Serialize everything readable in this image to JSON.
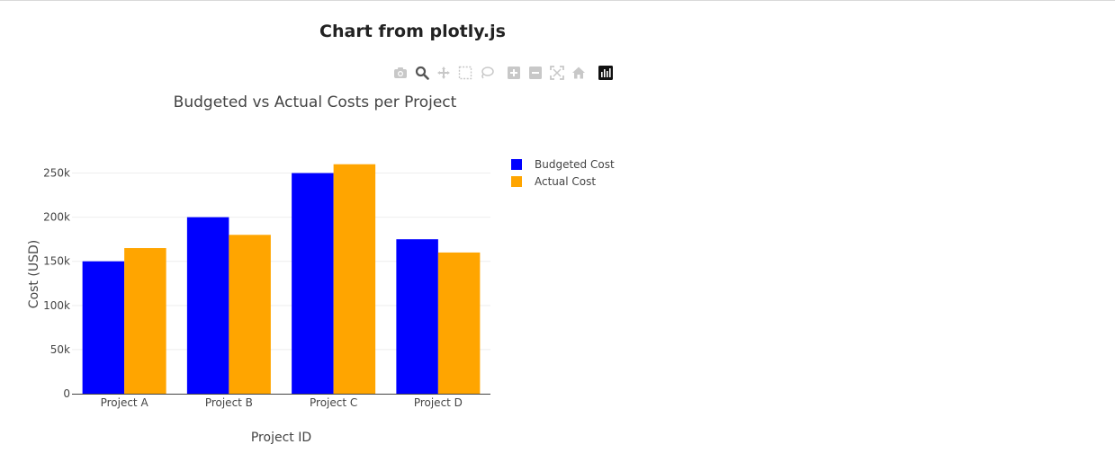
{
  "page": {
    "heading": "Chart from plotly.js"
  },
  "modebar": {
    "buttons": [
      {
        "icon": "camera-icon"
      },
      {
        "icon": "zoom-icon"
      },
      {
        "icon": "pan-icon"
      },
      {
        "icon": "box-select-icon"
      },
      {
        "icon": "lasso-select-icon"
      },
      {
        "icon": "zoom-in-icon"
      },
      {
        "icon": "zoom-out-icon"
      },
      {
        "icon": "autoscale-icon"
      },
      {
        "icon": "reset-axes-icon"
      },
      {
        "icon": "plotly-logo-icon"
      }
    ]
  },
  "colors": {
    "budgeted": "#0000ff",
    "actual": "#ffa500",
    "grid": "#eeeeee",
    "text": "#444444",
    "modebar_icon": "#c8c8c8",
    "modebar_active": "#555555"
  },
  "chart_data": {
    "type": "bar",
    "title": "Budgeted vs Actual Costs per Project",
    "xlabel": "Project ID",
    "ylabel": "Cost (USD)",
    "categories": [
      "Project A",
      "Project B",
      "Project C",
      "Project D"
    ],
    "series": [
      {
        "name": "Budgeted Cost",
        "values": [
          150000,
          200000,
          250000,
          175000
        ]
      },
      {
        "name": "Actual Cost",
        "values": [
          165000,
          180000,
          260000,
          160000
        ]
      }
    ],
    "ylim": [
      0,
      275000
    ],
    "yticks": [
      0,
      50000,
      100000,
      150000,
      200000,
      250000
    ],
    "ytick_labels": [
      "0",
      "50k",
      "100k",
      "150k",
      "200k",
      "250k"
    ],
    "grid": true,
    "legend": "top-right"
  }
}
